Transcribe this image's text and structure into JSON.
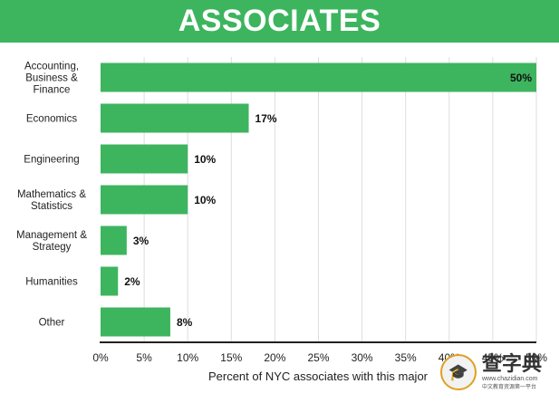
{
  "header": {
    "title": "ASSOCIATES"
  },
  "colors": {
    "bar": "#3db55f",
    "header_bg": "#3db55f",
    "grid": "#dddddd",
    "axis": "#222222"
  },
  "chart_data": {
    "type": "bar",
    "orientation": "horizontal",
    "title": "ASSOCIATES",
    "categories": [
      [
        "Accounting,",
        "Business &",
        "Finance"
      ],
      [
        "Economics"
      ],
      [
        "Engineering"
      ],
      [
        "Mathematics &",
        "Statistics"
      ],
      [
        "Management &",
        "Strategy"
      ],
      [
        "Humanities"
      ],
      [
        "Other"
      ]
    ],
    "values": [
      50,
      17,
      10,
      10,
      3,
      2,
      8
    ],
    "value_labels": [
      "50%",
      "17%",
      "10%",
      "10%",
      "3%",
      "2%",
      "8%"
    ],
    "xlabel": "Percent of NYC associates with this major",
    "ylabel": "",
    "xlim": [
      0,
      50
    ],
    "xticks": [
      "0%",
      "5%",
      "10%",
      "15%",
      "20%",
      "25%",
      "30%",
      "35%",
      "40%",
      "45%",
      "50%"
    ],
    "grid": true,
    "legend": "none"
  },
  "watermark": {
    "main": "查字典",
    "url": "www.chazidian.com",
    "sub": "中文教育资源第一平台"
  }
}
